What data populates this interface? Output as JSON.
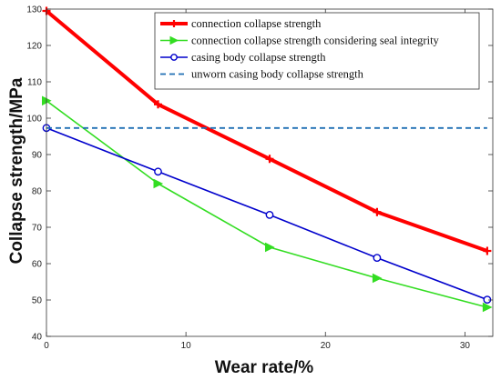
{
  "chart_data": {
    "type": "line",
    "xlabel": "Wear rate/%",
    "ylabel": "Collapse strength/MPa",
    "xlim": [
      0,
      32
    ],
    "ylim": [
      40,
      130
    ],
    "xticks": [
      0,
      10,
      20,
      30
    ],
    "yticks": [
      40,
      50,
      60,
      70,
      80,
      90,
      100,
      110,
      120,
      130
    ],
    "grid": false,
    "legend_position": "top-right",
    "series": [
      {
        "name": "connection collapse strength",
        "color": "#ff0000",
        "marker": "plus",
        "style": "solid",
        "x": [
          0,
          8,
          16,
          23.7,
          31.6
        ],
        "y": [
          129.5,
          103.8,
          88.8,
          74.2,
          63.5
        ]
      },
      {
        "name": "connection collapse strength considering seal integrity",
        "color": "#33dd22",
        "marker": "triangle-right",
        "style": "solid",
        "x": [
          0,
          8,
          16,
          23.7,
          31.6
        ],
        "y": [
          104.8,
          82,
          64.5,
          56,
          48
        ]
      },
      {
        "name": "casing body collapse strength",
        "color": "#0000cc",
        "marker": "circle",
        "style": "solid",
        "x": [
          0,
          8,
          16,
          23.7,
          31.6
        ],
        "y": [
          97.3,
          85.3,
          73.4,
          61.6,
          50.1
        ]
      },
      {
        "name": "unworn casing body collapse strength",
        "color": "#1f6fb4",
        "marker": "none",
        "style": "dashed",
        "x": [
          0,
          31.6
        ],
        "y": [
          97.3,
          97.3
        ]
      }
    ]
  }
}
